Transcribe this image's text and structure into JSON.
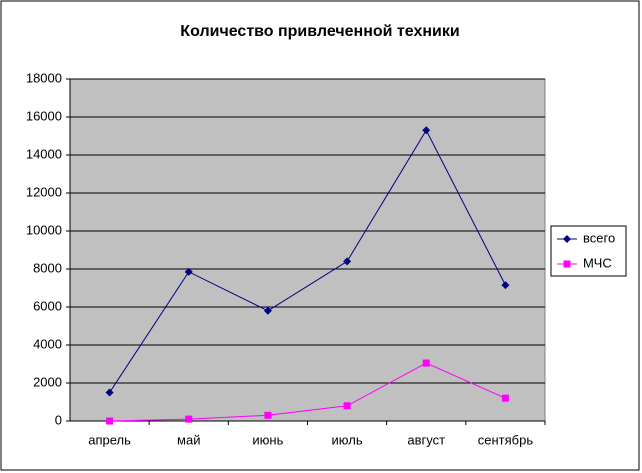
{
  "chart_data": {
    "type": "line",
    "title": "Количество привлеченной техники",
    "categories": [
      "апрель",
      "май",
      "июнь",
      "июль",
      "август",
      "сентябрь"
    ],
    "series": [
      {
        "name": "всего",
        "color": "#000080",
        "marker": "diamond",
        "values": [
          1500,
          7850,
          5800,
          8400,
          15300,
          7150
        ]
      },
      {
        "name": "МЧС",
        "color": "#ff00ff",
        "marker": "square",
        "values": [
          0,
          100,
          300,
          800,
          3050,
          1200
        ]
      }
    ],
    "ylim": [
      0,
      18000
    ],
    "yticks": [
      0,
      2000,
      4000,
      6000,
      8000,
      10000,
      12000,
      14000,
      16000,
      18000
    ],
    "grid": true,
    "legend": "right"
  }
}
